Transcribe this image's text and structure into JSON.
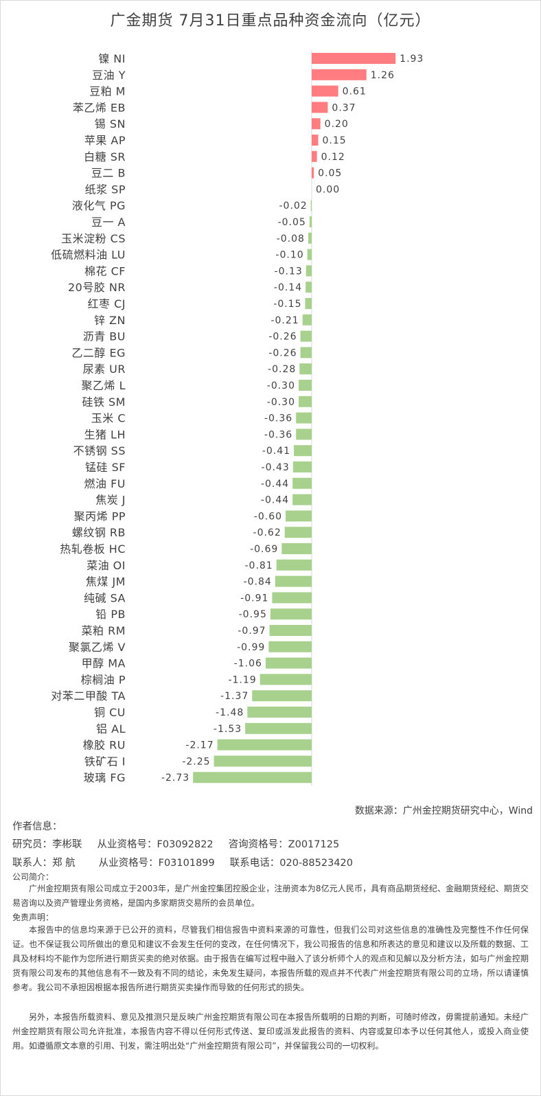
{
  "chart_data": {
    "type": "bar",
    "orientation": "horizontal",
    "title": "广金期货 7月31日重点品种资金流向（亿元）",
    "categories": [
      "镍 NI",
      "豆油 Y",
      "豆粕 M",
      "苯乙烯 EB",
      "锡 SN",
      "苹果 AP",
      "白糖 SR",
      "豆二 B",
      "纸浆 SP",
      "液化气 PG",
      "豆一 A",
      "玉米淀粉 CS",
      "低硫燃料油 LU",
      "棉花 CF",
      "20号胶 NR",
      "红枣 CJ",
      "锌 ZN",
      "沥青 BU",
      "乙二醇 EG",
      "尿素 UR",
      "聚乙烯 L",
      "硅铁 SM",
      "玉米 C",
      "生猪 LH",
      "不锈钢 SS",
      "锰硅 SF",
      "燃油 FU",
      "焦炭 J",
      "聚丙烯 PP",
      "螺纹钢 RB",
      "热轧卷板 HC",
      "菜油 OI",
      "焦煤 JM",
      "纯碱 SA",
      "铅 PB",
      "菜粕 RM",
      "聚氯乙烯 V",
      "甲醇 MA",
      "棕榈油 P",
      "对苯二甲酸 TA",
      "铜 CU",
      "铝 AL",
      "橡胶 RU",
      "铁矿石 I",
      "玻璃 FG"
    ],
    "values": [
      1.93,
      1.26,
      0.61,
      0.37,
      0.2,
      0.15,
      0.12,
      0.05,
      0.0,
      -0.02,
      -0.05,
      -0.08,
      -0.1,
      -0.13,
      -0.14,
      -0.15,
      -0.21,
      -0.26,
      -0.26,
      -0.28,
      -0.3,
      -0.3,
      -0.36,
      -0.36,
      -0.41,
      -0.43,
      -0.44,
      -0.44,
      -0.6,
      -0.62,
      -0.69,
      -0.81,
      -0.84,
      -0.91,
      -0.95,
      -0.97,
      -0.99,
      -1.06,
      -1.19,
      -1.37,
      -1.48,
      -1.53,
      -2.17,
      -2.25,
      -2.73
    ],
    "value_labels": [
      "1.93",
      "1.26",
      "0.61",
      "0.37",
      "0.20",
      "0.15",
      "0.12",
      "0.05",
      "0.00",
      "-0.02",
      "-0.05",
      "-0.08",
      "-0.10",
      "-0.13",
      "-0.14",
      "-0.15",
      "-0.21",
      "-0.26",
      "-0.26",
      "-0.28",
      "-0.30",
      "-0.30",
      "-0.36",
      "-0.36",
      "-0.41",
      "-0.43",
      "-0.44",
      "-0.44",
      "-0.60",
      "-0.62",
      "-0.69",
      "-0.81",
      "-0.84",
      "-0.91",
      "-0.95",
      "-0.97",
      "-0.99",
      "-1.06",
      "-1.19",
      "-1.37",
      "-1.48",
      "-1.53",
      "-2.17",
      "-2.25",
      "-2.73"
    ],
    "colors": {
      "positive": "#ff7c80",
      "negative": "#a9d18e",
      "axis": "#d9d9d9"
    },
    "grid": false,
    "legend": "none"
  },
  "footer": {
    "source": "数据来源：广州金控期货研究中心，Wind",
    "author_heading": "作者信息：",
    "researcher": "研究员：李彬联",
    "researcher_cert": "从业资格号：F03092822",
    "researcher_consult": "咨询资格号：Z0017125",
    "contact": "联系人：郑 航",
    "contact_cert": "从业资格号：F03101899",
    "contact_phone": "联系电话：020-88523420",
    "company_heading": "公司简介：",
    "company_text": "广州金控期货有限公司成立于2003年，是广州金控集团控股企业，注册资本为8亿元人民币，具有商品期货经纪、金融期货经纪、期货交易咨询以及资产管理业务资格，是国内多家期货交易所的会员单位。",
    "disclaimer_heading": "免责声明：",
    "disclaimer_text_1": "本报告中的信息均来源于已公开的资料，尽管我们相信报告中资料来源的可靠性，但我们公司对这些信息的准确性及完整性不作任何保证。也不保证我公司所做出的意见和建议不会发生任何的变改，在任何情况下，我公司报告的信息和所表达的意见和建议以及所载的数据、工具及材料均不能作为您所进行期货买卖的绝对依据。由于报告在编写过程中融入了该分析师个人的观点和见解以及分析方法，如与广州金控期货有限公司发布的其他信息有不一致及有不同的结论，未免发生疑问，本报告所载的观点并不代表广州金控期货有限公司的立场，所以请谨慎参考。我公司不承担因根据本报告所进行期货买卖操作而导致的任何形式的损失。",
    "disclaimer_text_2": "另外，本报告所载资料、意见及推测只是反映广州金控期货有限公司在本报告所载明的日期的判断，可随时修改，毋需提前通知。未经广州金控期货有限公司允许批准，本报告内容不得以任何形式传送、复印或派发此报告的资料、内容或复印本予以任何其他人，或投入商业使用。如遵循原文本意的引用、刊发，需注明出处“广州金控期货有限公司”，并保留我公司的一切权利。"
  }
}
